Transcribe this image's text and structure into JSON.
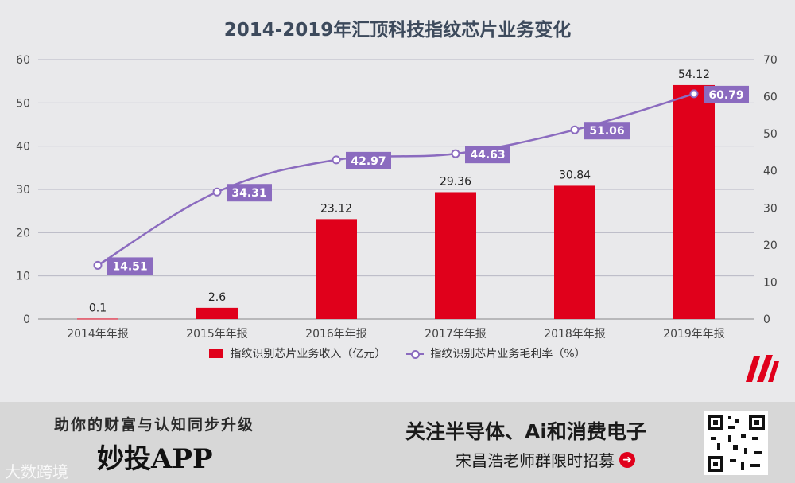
{
  "chart_data": {
    "type": "bar+line",
    "title": "2014-2019年汇顶科技指纹芯片业务变化",
    "categories": [
      "2014年年报",
      "2015年年报",
      "2016年年报",
      "2017年年报",
      "2018年年报",
      "2019年年报"
    ],
    "series": [
      {
        "name": "指纹识别芯片业务收入（亿元）",
        "type": "bar",
        "axis": "left",
        "color": "#e0001b",
        "values": [
          0.1,
          2.6,
          23.12,
          29.36,
          30.84,
          54.12
        ],
        "labels": [
          "0.1",
          "2.6",
          "23.12",
          "29.36",
          "30.84",
          "54.12"
        ]
      },
      {
        "name": "指纹识别芯片业务毛利率（%）",
        "type": "line",
        "axis": "right",
        "color": "#8b6bbf",
        "values": [
          14.51,
          34.31,
          42.97,
          44.63,
          51.06,
          60.79
        ],
        "labels": [
          "14.51",
          "34.31",
          "42.97",
          "44.63",
          "51.06",
          "60.79"
        ]
      }
    ],
    "y_left": {
      "min": 0,
      "max": 60,
      "ticks": [
        "0",
        "10",
        "20",
        "30",
        "40",
        "50",
        "60"
      ]
    },
    "y_right": {
      "min": 0,
      "max": 70,
      "ticks": [
        "0",
        "10",
        "20",
        "30",
        "40",
        "50",
        "60",
        "70"
      ]
    },
    "grid": true,
    "legend": "bottom-center"
  },
  "banner": {
    "tagline": "助你的财富与认知同步升级",
    "app_name": "妙投APP",
    "watermark": "大数跨境",
    "follow_text": "关注半导体、Ai和消费电子",
    "recruit_text": "宋昌浩老师群限时招募"
  }
}
